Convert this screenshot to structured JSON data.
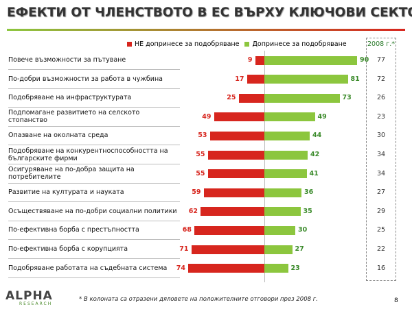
{
  "chart_data": {
    "type": "diverging-bar",
    "title": "ЕФЕКТИ ОТ ЧЛЕНСТВОТО В ЕС ВЪРХУ КЛЮЧОВИ СЕКТОРИ (%)",
    "categories": [
      "Повече възможности за пътуване",
      "По-добри възможности за работа в чужбина",
      "Подобряване на инфраструктурата",
      "Подпомагане развитието на селското стопанство",
      "Опазване на околната среда",
      "Подобряване на конкурентноспособността на българските фирми",
      "Осигуряване на по-добра защита на потребителите",
      "Развитие на културата и науката",
      "Осъществяване на по-добри социални политики",
      "По-ефективна борба с престъпността",
      "По-ефективна борба с корупцията",
      "Подобряване работата на съдебната система"
    ],
    "series": [
      {
        "name": "НЕ допринесе за подобряване",
        "color": "#d7261e",
        "values": [
          9,
          17,
          25,
          49,
          53,
          55,
          55,
          59,
          62,
          68,
          71,
          74
        ]
      },
      {
        "name": "Допринесе за подобряване",
        "color": "#8cc63e",
        "values": [
          90,
          81,
          73,
          49,
          44,
          42,
          41,
          36,
          35,
          30,
          27,
          23
        ]
      }
    ],
    "extra_column": {
      "header": "2008 г.*",
      "values": [
        77,
        72,
        26,
        23,
        30,
        34,
        34,
        27,
        29,
        25,
        22,
        16
      ]
    },
    "footnote": "* В колоната са отразени дяловете на положителните отговори през 2008 г."
  },
  "logo": {
    "name": "ALPHA",
    "subtitle": "RESEARCH"
  },
  "page_number": "8"
}
